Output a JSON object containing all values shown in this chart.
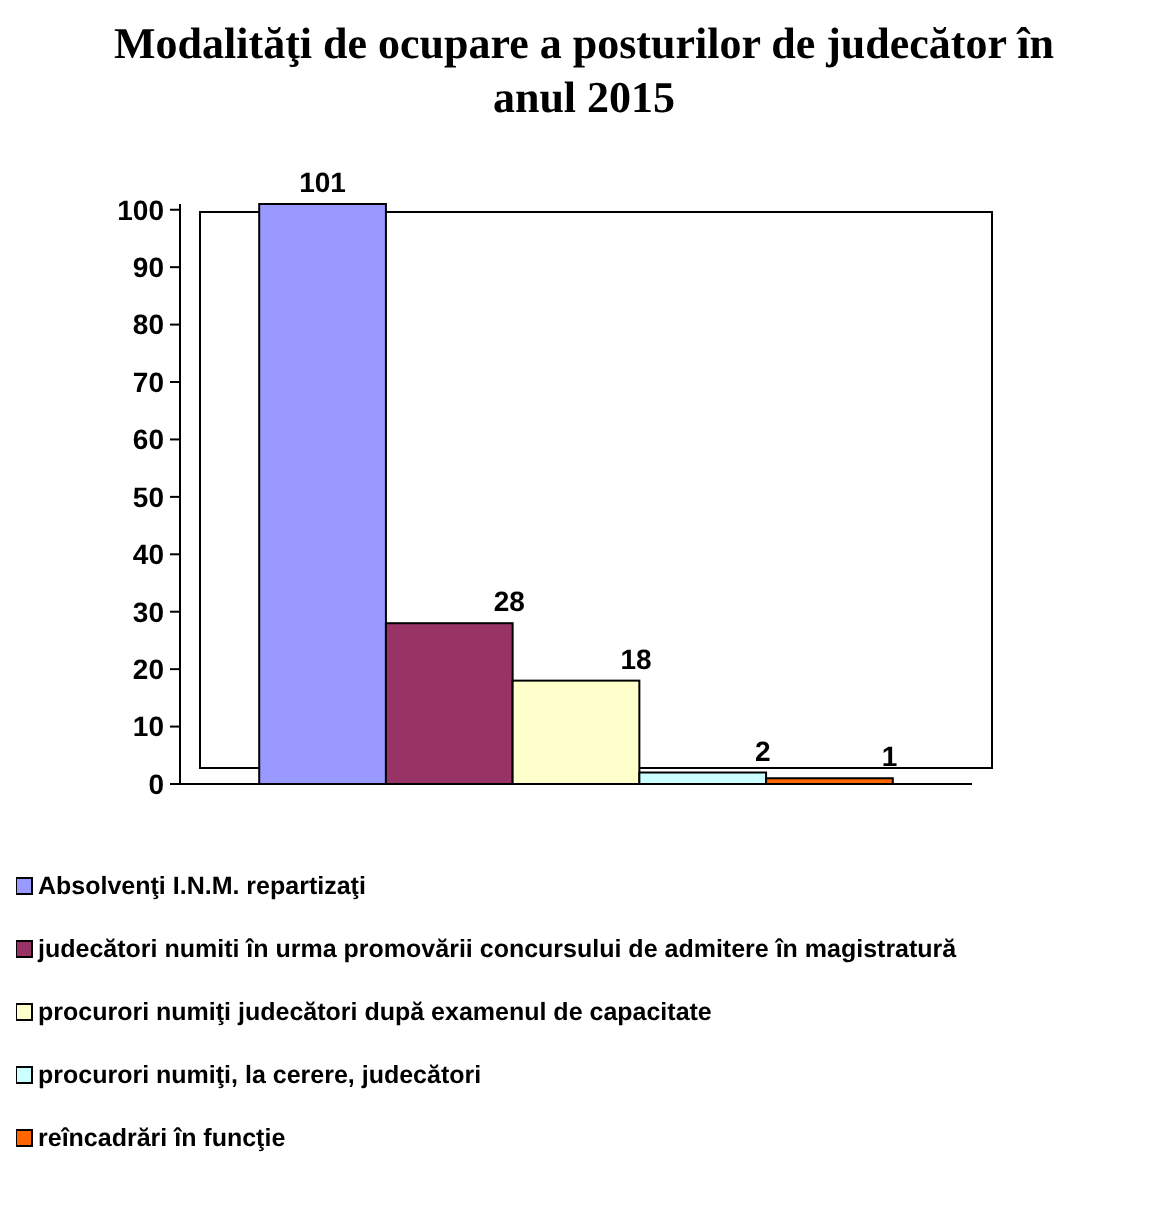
{
  "chart_data": {
    "type": "bar",
    "title": "Modalităţi de ocupare a posturilor de judecător în anul 2015",
    "categories": [
      null
    ],
    "series": [
      {
        "name": "Absolvenţi I.N.M. repartizaţi",
        "color": "#9999ff",
        "values": [
          101
        ]
      },
      {
        "name": "judecători numiti în urma promovării concursului de admitere în magistratură",
        "color": "#993366",
        "values": [
          28
        ]
      },
      {
        "name": "procurori numiţi judecători după examenul de capacitate",
        "color": "#ffffcc",
        "values": [
          18
        ]
      },
      {
        "name": "procurori numiţi, la cerere, judecători",
        "color": "#ccffff",
        "values": [
          2
        ]
      },
      {
        "name": "reîncadrări în funcţie",
        "color": "#ff6600",
        "values": [
          1
        ]
      }
    ],
    "ylim": [
      0,
      101
    ],
    "yticks": [
      0,
      10,
      20,
      30,
      40,
      50,
      60,
      70,
      80,
      90,
      100
    ],
    "data_labels": true,
    "legend": "bottom"
  }
}
